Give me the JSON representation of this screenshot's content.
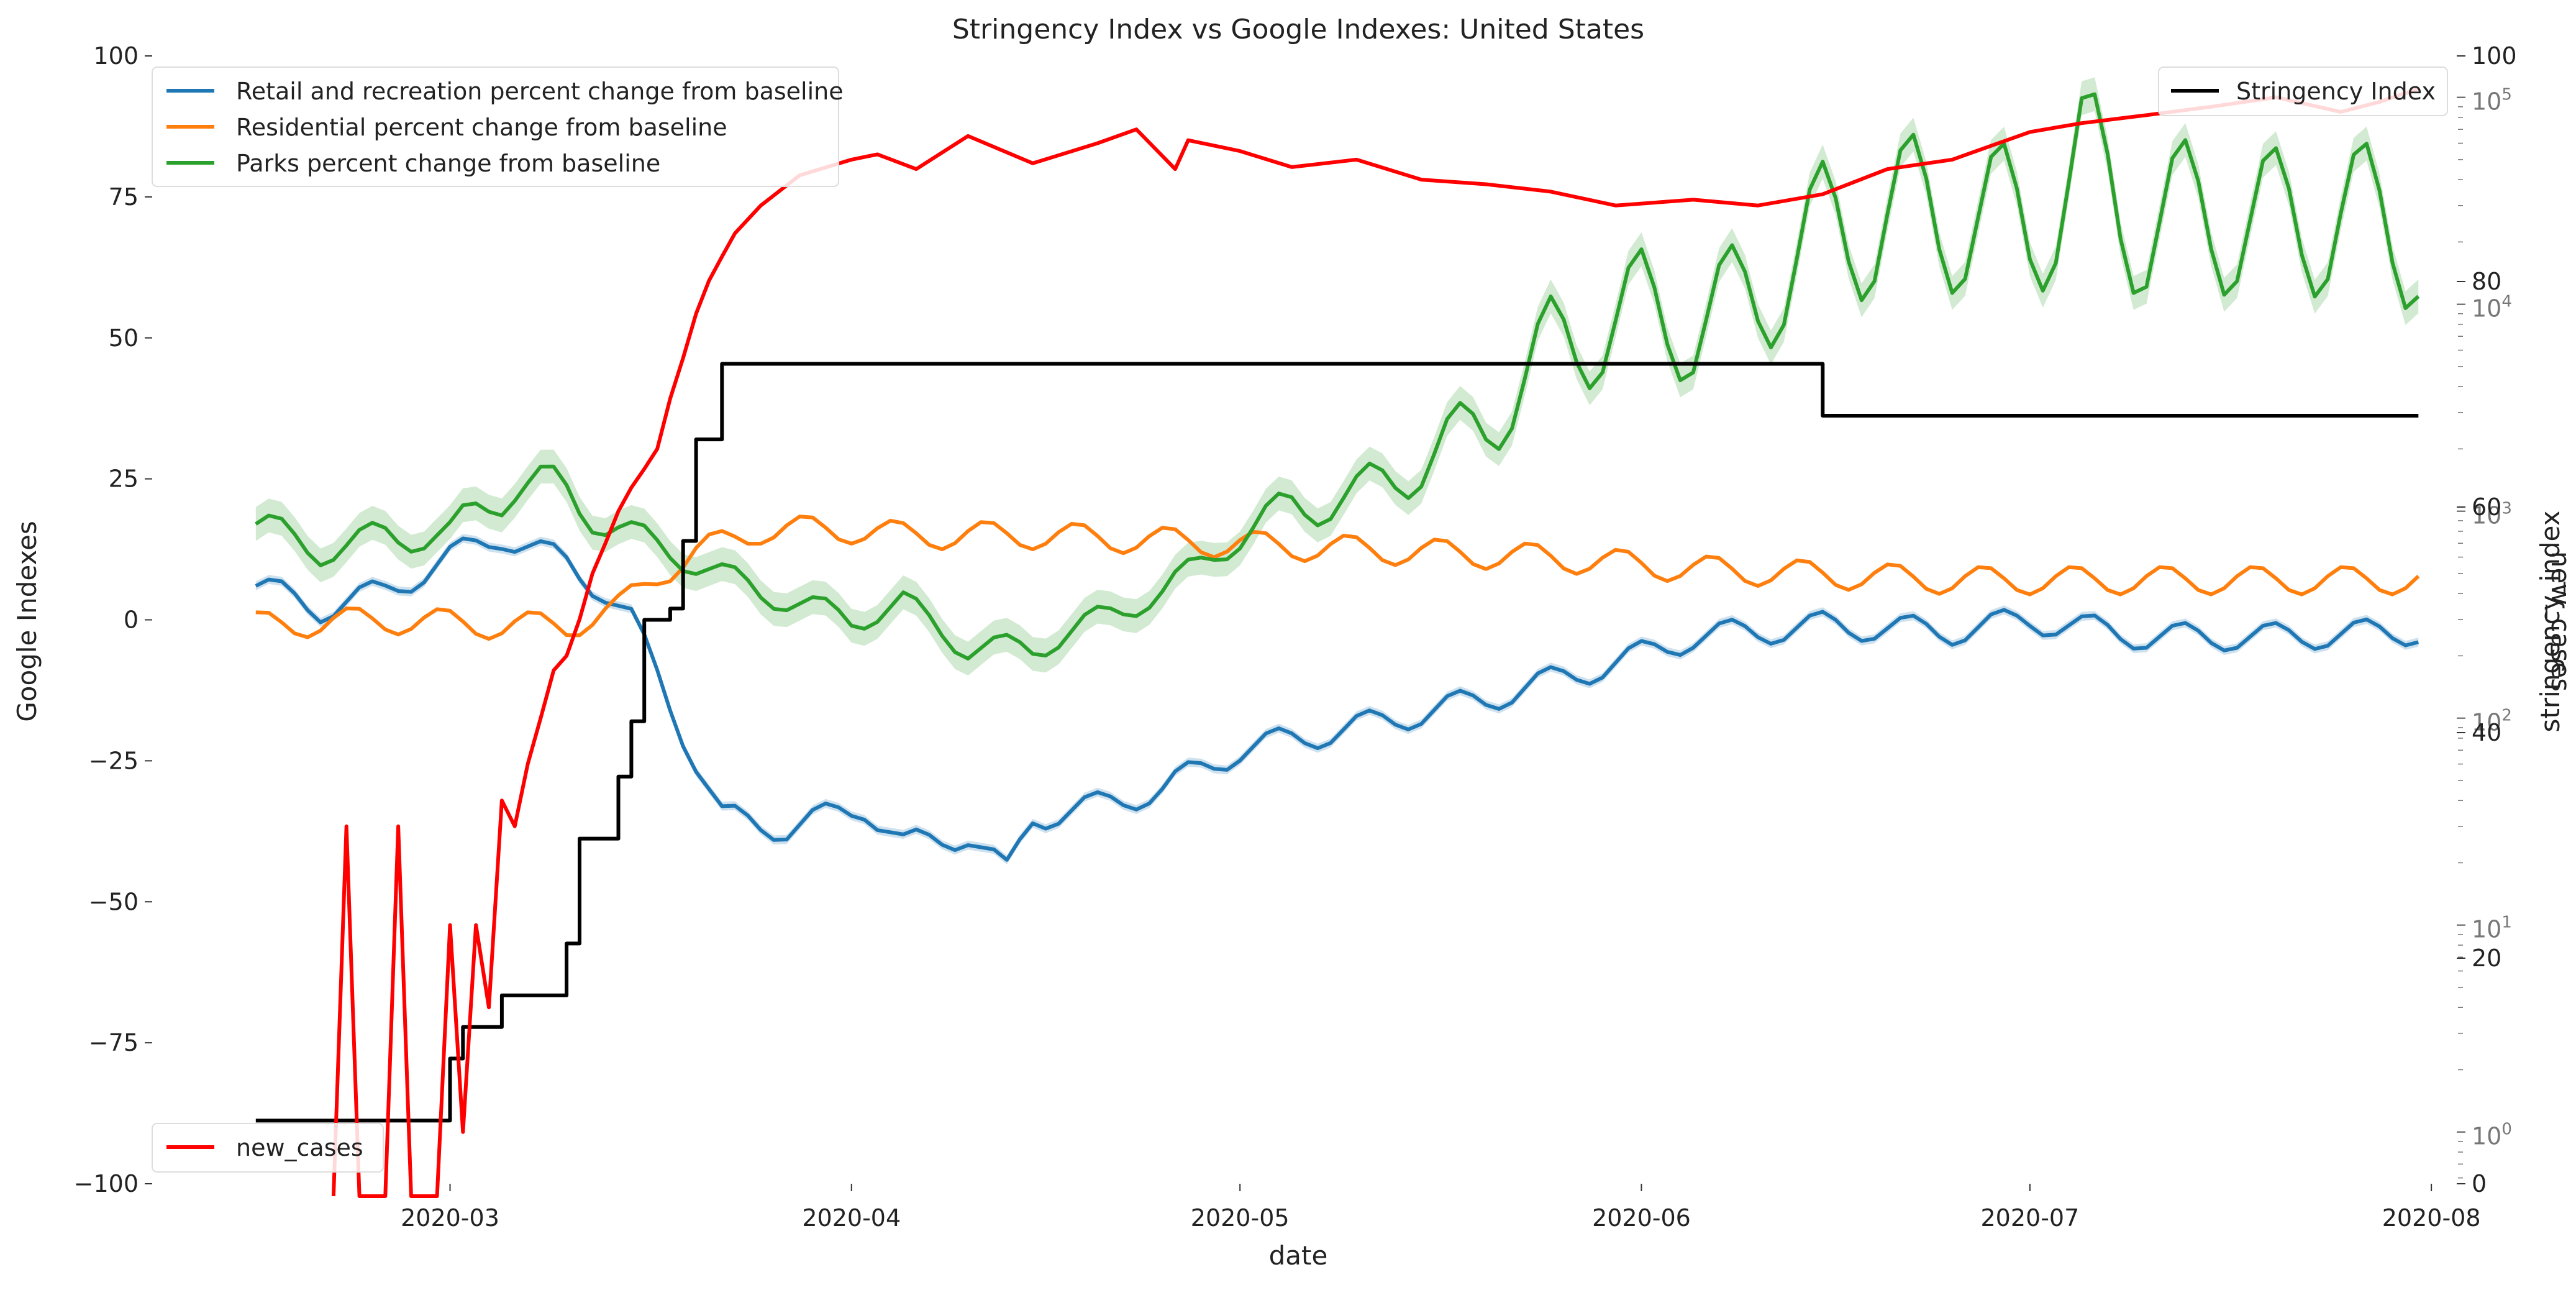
{
  "chart_data": {
    "type": "line",
    "title": "Stringency Index vs Google Indexes:  United States",
    "xlabel": "date",
    "ylabel_left": "Google Indexes",
    "ylabel_right_stringency": "stringency_index",
    "ylabel_right_cases": "new_cases",
    "xlim": [
      "2020-02-07",
      "2020-08-02"
    ],
    "ylim_left": [
      -100,
      100
    ],
    "ylim_stringency": [
      0,
      100
    ],
    "yscale_cases": "log",
    "ylim_cases_log10": [
      -0.25,
      5.2
    ],
    "x_ticks": [
      "2020-03",
      "2020-04",
      "2020-05",
      "2020-06",
      "2020-07",
      "2020-08"
    ],
    "y_ticks_left": [
      "100",
      "75",
      "50",
      "25",
      "0",
      "−25",
      "−50",
      "−75",
      "−100"
    ],
    "y_ticks_stringency": [
      "100",
      "80",
      "60",
      "40",
      "20",
      "0"
    ],
    "grid": false,
    "legend_google": {
      "placement": "top-left",
      "entries": [
        "Retail and recreation percent change from baseline",
        "Residential percent change from baseline",
        "Parks percent change from baseline"
      ]
    },
    "legend_stringency": {
      "placement": "top-right",
      "entries": [
        "Stringency Index"
      ]
    },
    "legend_cases": {
      "placement": "bottom-left",
      "entries": [
        "new_cases"
      ]
    },
    "colors": {
      "retail": "#1f77b4",
      "residential": "#ff7f0e",
      "parks": "#2ca02c",
      "stringency": "#000000",
      "new_cases": "#ff0000",
      "band_parks": "#2ca02c"
    },
    "series": [
      {
        "name": "Retail and recreation percent change from baseline",
        "axis": "left",
        "anchors": [
          [
            "2020-02-15",
            6
          ],
          [
            "2020-02-20",
            2
          ],
          [
            "2020-02-25",
            5
          ],
          [
            "2020-03-01",
            11
          ],
          [
            "2020-03-05",
            15
          ],
          [
            "2020-03-10",
            10
          ],
          [
            "2020-03-13",
            5
          ],
          [
            "2020-03-15",
            0
          ],
          [
            "2020-03-17",
            -10
          ],
          [
            "2020-03-20",
            -25
          ],
          [
            "2020-03-22",
            -35
          ],
          [
            "2020-03-27",
            -37
          ],
          [
            "2020-04-02",
            -33
          ],
          [
            "2020-04-05",
            -40
          ],
          [
            "2020-04-10",
            -38
          ],
          [
            "2020-04-13",
            -45
          ],
          [
            "2020-04-15",
            -35
          ],
          [
            "2020-04-20",
            -33
          ],
          [
            "2020-04-25",
            -30
          ],
          [
            "2020-05-01",
            -23
          ],
          [
            "2020-05-10",
            -19
          ],
          [
            "2020-05-20",
            -14
          ],
          [
            "2020-05-31",
            -7
          ],
          [
            "2020-06-05",
            -3
          ],
          [
            "2020-06-15",
            -1
          ],
          [
            "2020-06-25",
            -2
          ],
          [
            "2020-07-01",
            0
          ],
          [
            "2020-07-10",
            -3
          ],
          [
            "2020-07-20",
            -3
          ],
          [
            "2020-07-31",
            -2
          ]
        ]
      },
      {
        "name": "Residential percent change from baseline",
        "axis": "left",
        "anchors": [
          [
            "2020-02-15",
            -1
          ],
          [
            "2020-02-25",
            0
          ],
          [
            "2020-03-05",
            -1
          ],
          [
            "2020-03-10",
            -1
          ],
          [
            "2020-03-14",
            2
          ],
          [
            "2020-03-17",
            8
          ],
          [
            "2020-03-20",
            12
          ],
          [
            "2020-03-25",
            16
          ],
          [
            "2020-04-01",
            16
          ],
          [
            "2020-04-05",
            15
          ],
          [
            "2020-04-15",
            15
          ],
          [
            "2020-04-25",
            14
          ],
          [
            "2020-05-05",
            13
          ],
          [
            "2020-05-15",
            12
          ],
          [
            "2020-05-25",
            11
          ],
          [
            "2020-06-05",
            9
          ],
          [
            "2020-06-15",
            8
          ],
          [
            "2020-06-25",
            7
          ],
          [
            "2020-07-05",
            7
          ],
          [
            "2020-07-15",
            7
          ],
          [
            "2020-07-31",
            7
          ]
        ]
      },
      {
        "name": "Parks percent change from baseline",
        "axis": "left",
        "anchors": [
          [
            "2020-02-15",
            17
          ],
          [
            "2020-02-20",
            12
          ],
          [
            "2020-02-25",
            15
          ],
          [
            "2020-03-01",
            15
          ],
          [
            "2020-03-06",
            25
          ],
          [
            "2020-03-10",
            22
          ],
          [
            "2020-03-15",
            15
          ],
          [
            "2020-03-20",
            10
          ],
          [
            "2020-03-25",
            5
          ],
          [
            "2020-04-01",
            0
          ],
          [
            "2020-04-05",
            3
          ],
          [
            "2020-04-10",
            -5
          ],
          [
            "2020-04-15",
            -5
          ],
          [
            "2020-04-20",
            0
          ],
          [
            "2020-04-25",
            5
          ],
          [
            "2020-05-01",
            15
          ],
          [
            "2020-05-05",
            20
          ],
          [
            "2020-05-10",
            22
          ],
          [
            "2020-05-15",
            28
          ],
          [
            "2020-05-20",
            35
          ],
          [
            "2020-05-25",
            48
          ],
          [
            "2020-06-01",
            55
          ],
          [
            "2020-06-05",
            52
          ],
          [
            "2020-06-10",
            58
          ],
          [
            "2020-06-15",
            68
          ],
          [
            "2020-06-20",
            72
          ],
          [
            "2020-06-25",
            72
          ],
          [
            "2020-07-01",
            70
          ],
          [
            "2020-07-05",
            80
          ],
          [
            "2020-07-10",
            70
          ],
          [
            "2020-07-15",
            72
          ],
          [
            "2020-07-20",
            70
          ],
          [
            "2020-07-25",
            72
          ],
          [
            "2020-07-31",
            68
          ]
        ],
        "weekly_swing_percent": 20
      },
      {
        "name": "Stringency Index",
        "axis": "right_stringency",
        "steps": [
          [
            "2020-02-15",
            5.6
          ],
          [
            "2020-03-01",
            11.1
          ],
          [
            "2020-03-02",
            13.9
          ],
          [
            "2020-03-05",
            16.7
          ],
          [
            "2020-03-08",
            16.7
          ],
          [
            "2020-03-10",
            21.3
          ],
          [
            "2020-03-11",
            30.6
          ],
          [
            "2020-03-13",
            30.6
          ],
          [
            "2020-03-14",
            36.1
          ],
          [
            "2020-03-15",
            41
          ],
          [
            "2020-03-16",
            50
          ],
          [
            "2020-03-18",
            51
          ],
          [
            "2020-03-19",
            57
          ],
          [
            "2020-03-20",
            66
          ],
          [
            "2020-03-21",
            66
          ],
          [
            "2020-03-22",
            72.7
          ],
          [
            "2020-06-14",
            72.7
          ],
          [
            "2020-06-15",
            68.1
          ],
          [
            "2020-07-31",
            68.1
          ]
        ]
      },
      {
        "name": "new_cases",
        "axis": "right_cases",
        "points": [
          [
            "2020-02-21",
            0
          ],
          [
            "2020-02-22",
            30
          ],
          [
            "2020-02-23",
            0
          ],
          [
            "2020-02-24",
            0
          ],
          [
            "2020-02-25",
            0
          ],
          [
            "2020-02-26",
            30
          ],
          [
            "2020-02-27",
            0
          ],
          [
            "2020-02-28",
            0
          ],
          [
            "2020-02-29",
            0
          ],
          [
            "2020-03-01",
            10
          ],
          [
            "2020-03-02",
            1
          ],
          [
            "2020-03-03",
            10
          ],
          [
            "2020-03-04",
            4
          ],
          [
            "2020-03-05",
            40
          ],
          [
            "2020-03-06",
            30
          ],
          [
            "2020-03-07",
            60
          ],
          [
            "2020-03-08",
            100
          ],
          [
            "2020-03-09",
            170
          ],
          [
            "2020-03-10",
            200
          ],
          [
            "2020-03-11",
            300
          ],
          [
            "2020-03-12",
            500
          ],
          [
            "2020-03-13",
            700
          ],
          [
            "2020-03-14",
            1000
          ],
          [
            "2020-03-15",
            1300
          ],
          [
            "2020-03-16",
            1600
          ],
          [
            "2020-03-17",
            2000
          ],
          [
            "2020-03-18",
            3500
          ],
          [
            "2020-03-19",
            5500
          ],
          [
            "2020-03-20",
            9000
          ],
          [
            "2020-03-21",
            13000
          ],
          [
            "2020-03-22",
            17000
          ],
          [
            "2020-03-23",
            22000
          ],
          [
            "2020-03-25",
            30000
          ],
          [
            "2020-03-28",
            42000
          ],
          [
            "2020-04-01",
            50000
          ],
          [
            "2020-04-03",
            53000
          ],
          [
            "2020-04-06",
            45000
          ],
          [
            "2020-04-10",
            65000
          ],
          [
            "2020-04-15",
            48000
          ],
          [
            "2020-04-20",
            60000
          ],
          [
            "2020-04-23",
            70000
          ],
          [
            "2020-04-26",
            45000
          ],
          [
            "2020-04-27",
            62000
          ],
          [
            "2020-05-01",
            55000
          ],
          [
            "2020-05-05",
            46000
          ],
          [
            "2020-05-10",
            50000
          ],
          [
            "2020-05-15",
            40000
          ],
          [
            "2020-05-20",
            38000
          ],
          [
            "2020-05-25",
            35000
          ],
          [
            "2020-05-30",
            30000
          ],
          [
            "2020-06-05",
            32000
          ],
          [
            "2020-06-10",
            30000
          ],
          [
            "2020-06-15",
            34000
          ],
          [
            "2020-06-20",
            45000
          ],
          [
            "2020-06-25",
            50000
          ],
          [
            "2020-07-01",
            68000
          ],
          [
            "2020-07-05",
            75000
          ],
          [
            "2020-07-10",
            82000
          ],
          [
            "2020-07-15",
            90000
          ],
          [
            "2020-07-20",
            100000
          ],
          [
            "2020-07-25",
            85000
          ],
          [
            "2020-07-28",
            95000
          ],
          [
            "2020-07-31",
            110000
          ]
        ]
      }
    ]
  }
}
